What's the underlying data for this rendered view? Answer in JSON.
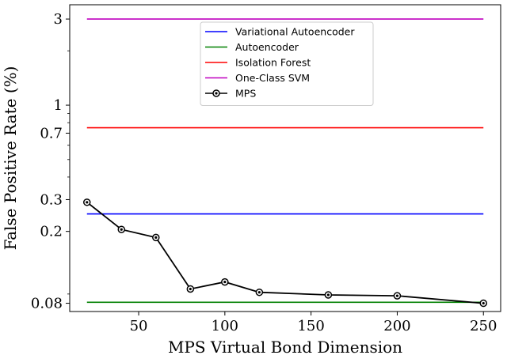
{
  "chart_data": {
    "type": "line",
    "xlabel": "MPS Virtual Bond Dimension",
    "ylabel": "False Positive Rate (%)",
    "yscale": "log",
    "xlim": [
      10,
      260
    ],
    "ylim": [
      0.072,
      3.6
    ],
    "xticks": [
      50,
      100,
      150,
      200,
      250
    ],
    "yticks": [
      {
        "value": 3,
        "label": "3"
      },
      {
        "value": 1,
        "label": "1"
      },
      {
        "value": 0.7,
        "label": "0.7"
      },
      {
        "value": 0.3,
        "label": "0.3"
      },
      {
        "value": 0.2,
        "label": "0.2"
      },
      {
        "value": 0.08,
        "label": "0.08"
      }
    ],
    "legend_position": "top-center",
    "grid": false,
    "baselines": [
      {
        "name": "Variational Autoencoder",
        "value": 0.25,
        "color": "#0000ff"
      },
      {
        "name": "Autoencoder",
        "value": 0.081,
        "color": "#008000"
      },
      {
        "name": "Isolation Forest",
        "value": 0.75,
        "color": "#ff0000"
      },
      {
        "name": "One-Class SVM",
        "value": 3.0,
        "color": "#bf00bf"
      }
    ],
    "series": [
      {
        "name": "MPS",
        "color": "#000000",
        "marker": "circle",
        "x": [
          20,
          40,
          60,
          80,
          100,
          120,
          160,
          200,
          250
        ],
        "y": [
          0.29,
          0.205,
          0.185,
          0.096,
          0.105,
          0.092,
          0.089,
          0.088,
          0.08
        ]
      }
    ]
  }
}
